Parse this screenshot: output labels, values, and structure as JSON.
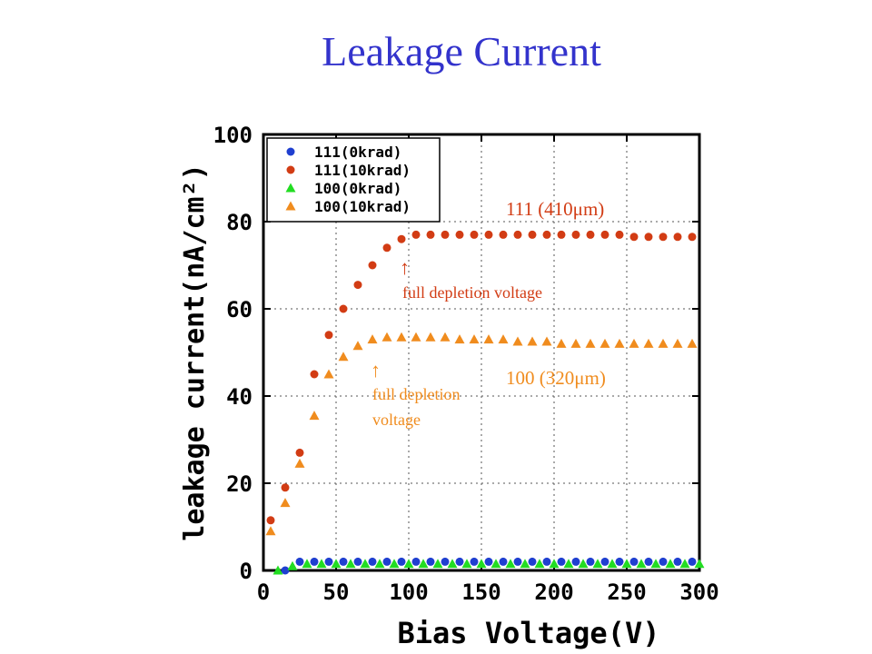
{
  "slide": {
    "title": "Leakage Current"
  },
  "colors": {
    "title": "#3333cc",
    "s111_0": "#1f3fd0",
    "s111_10": "#d23c14",
    "s100_0": "#22dd22",
    "s100_10": "#f08c1e"
  },
  "annotations": {
    "label_111": "111 (410μm)",
    "label_100": "100 (320μm)",
    "arrow": "↑",
    "fdv_111": "full depletion voltage",
    "fdv_100_line1": "full depletion",
    "fdv_100_line2": "voltage"
  },
  "chart_data": {
    "type": "scatter",
    "xlabel": "Bias Voltage(V)",
    "ylabel": "leakage current(nA/cm²)",
    "xlim": [
      0,
      300
    ],
    "ylim": [
      0,
      100
    ],
    "xticks": [
      0,
      50,
      100,
      150,
      200,
      250,
      300
    ],
    "yticks": [
      0,
      20,
      40,
      60,
      80,
      100
    ],
    "grid": true,
    "legend_position": "top-left",
    "series": [
      {
        "name": "111(0krad)",
        "marker": "circle",
        "color": "#1f3fd0",
        "x": [
          15,
          25,
          35,
          45,
          55,
          65,
          75,
          85,
          95,
          105,
          115,
          125,
          135,
          145,
          155,
          165,
          175,
          185,
          195,
          205,
          215,
          225,
          235,
          245,
          255,
          265,
          275,
          285,
          295
        ],
        "y": [
          0,
          2,
          2,
          2,
          2,
          2,
          2,
          2,
          2,
          2,
          2,
          2,
          2,
          2,
          2,
          2,
          2,
          2,
          2,
          2,
          2,
          2,
          2,
          2,
          2,
          2,
          2,
          2,
          2
        ]
      },
      {
        "name": "111(10krad)",
        "marker": "circle",
        "color": "#d23c14",
        "x": [
          5,
          15,
          25,
          35,
          45,
          55,
          65,
          75,
          85,
          95,
          105,
          115,
          125,
          135,
          145,
          155,
          165,
          175,
          185,
          195,
          205,
          215,
          225,
          235,
          245,
          255,
          265,
          275,
          285,
          295
        ],
        "y": [
          11.5,
          19,
          27,
          45,
          54,
          60,
          65.5,
          70,
          74,
          76,
          77,
          77,
          77,
          77,
          77,
          77,
          77,
          77,
          77,
          77,
          77,
          77,
          77,
          77,
          77,
          76.5,
          76.5,
          76.5,
          76.5,
          76.5
        ]
      },
      {
        "name": "100(0krad)",
        "marker": "triangle",
        "color": "#22dd22",
        "x": [
          10,
          20,
          30,
          40,
          50,
          60,
          70,
          80,
          90,
          100,
          110,
          120,
          130,
          140,
          150,
          160,
          170,
          180,
          190,
          200,
          210,
          220,
          230,
          240,
          250,
          260,
          270,
          280,
          290,
          300
        ],
        "y": [
          0,
          1,
          1.5,
          1.5,
          1.5,
          1.5,
          1.5,
          1.5,
          1.5,
          1.5,
          1.5,
          1.5,
          1.5,
          1.5,
          1.5,
          1.5,
          1.5,
          1.5,
          1.5,
          1.5,
          1.5,
          1.5,
          1.5,
          1.5,
          1.5,
          1.5,
          1.5,
          1.5,
          1.5,
          1.5
        ]
      },
      {
        "name": "100(10krad)",
        "marker": "triangle",
        "color": "#f08c1e",
        "x": [
          5,
          15,
          25,
          35,
          45,
          55,
          65,
          75,
          85,
          95,
          105,
          115,
          125,
          135,
          145,
          155,
          165,
          175,
          185,
          195,
          205,
          215,
          225,
          235,
          245,
          255,
          265,
          275,
          285,
          295
        ],
        "y": [
          9,
          15.5,
          24.5,
          35.5,
          45,
          49,
          51.5,
          53,
          53.5,
          53.5,
          53.5,
          53.5,
          53.5,
          53,
          53,
          53,
          53,
          52.5,
          52.5,
          52.5,
          52,
          52,
          52,
          52,
          52,
          52,
          52,
          52,
          52,
          52
        ]
      }
    ]
  }
}
